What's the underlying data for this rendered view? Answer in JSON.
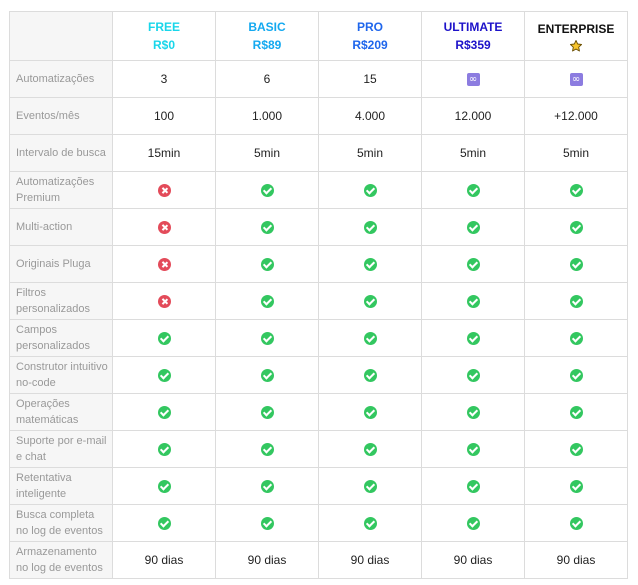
{
  "colors": {
    "free": "#18d6ea",
    "basic": "#14a9f0",
    "pro": "#1f66ec",
    "ultimate": "#1d12c9",
    "enterprise": "#111111"
  },
  "plans": [
    {
      "name": "FREE",
      "price": "R$0"
    },
    {
      "name": "BASIC",
      "price": "R$89"
    },
    {
      "name": "PRO",
      "price": "R$209"
    },
    {
      "name": "ULTIMATE",
      "price": "R$359"
    },
    {
      "name": "ENTERPRISE",
      "icon": "star-icon"
    }
  ],
  "rows": [
    {
      "label": "Automatizações",
      "values": [
        {
          "text": "3"
        },
        {
          "text": "6"
        },
        {
          "text": "15"
        },
        {
          "icon": "infinity-icon"
        },
        {
          "icon": "infinity-icon"
        }
      ]
    },
    {
      "label": "Eventos/mês",
      "values": [
        {
          "text": "100"
        },
        {
          "text": "1.000"
        },
        {
          "text": "4.000"
        },
        {
          "text": "12.000"
        },
        {
          "text": "+12.000"
        }
      ]
    },
    {
      "label": "Intervalo de busca",
      "values": [
        {
          "text": "15min"
        },
        {
          "text": "5min"
        },
        {
          "text": "5min"
        },
        {
          "text": "5min"
        },
        {
          "text": "5min"
        }
      ]
    },
    {
      "label": "Automatizações Premium",
      "values": [
        {
          "icon": "cross-icon"
        },
        {
          "icon": "check-icon"
        },
        {
          "icon": "check-icon"
        },
        {
          "icon": "check-icon"
        },
        {
          "icon": "check-icon"
        }
      ]
    },
    {
      "label": "Multi-action",
      "values": [
        {
          "icon": "cross-icon"
        },
        {
          "icon": "check-icon"
        },
        {
          "icon": "check-icon"
        },
        {
          "icon": "check-icon"
        },
        {
          "icon": "check-icon"
        }
      ]
    },
    {
      "label": "Originais Pluga",
      "values": [
        {
          "icon": "cross-icon"
        },
        {
          "icon": "check-icon"
        },
        {
          "icon": "check-icon"
        },
        {
          "icon": "check-icon"
        },
        {
          "icon": "check-icon"
        }
      ]
    },
    {
      "label": "Filtros personalizados",
      "values": [
        {
          "icon": "cross-icon"
        },
        {
          "icon": "check-icon"
        },
        {
          "icon": "check-icon"
        },
        {
          "icon": "check-icon"
        },
        {
          "icon": "check-icon"
        }
      ]
    },
    {
      "label": "Campos personalizados",
      "values": [
        {
          "icon": "check-icon"
        },
        {
          "icon": "check-icon"
        },
        {
          "icon": "check-icon"
        },
        {
          "icon": "check-icon"
        },
        {
          "icon": "check-icon"
        }
      ]
    },
    {
      "label": "Construtor intuitivo no-code",
      "values": [
        {
          "icon": "check-icon"
        },
        {
          "icon": "check-icon"
        },
        {
          "icon": "check-icon"
        },
        {
          "icon": "check-icon"
        },
        {
          "icon": "check-icon"
        }
      ]
    },
    {
      "label": "Operações matemáticas",
      "values": [
        {
          "icon": "check-icon"
        },
        {
          "icon": "check-icon"
        },
        {
          "icon": "check-icon"
        },
        {
          "icon": "check-icon"
        },
        {
          "icon": "check-icon"
        }
      ]
    },
    {
      "label": "Suporte por e-mail e chat",
      "values": [
        {
          "icon": "check-icon"
        },
        {
          "icon": "check-icon"
        },
        {
          "icon": "check-icon"
        },
        {
          "icon": "check-icon"
        },
        {
          "icon": "check-icon"
        }
      ]
    },
    {
      "label": "Retentativa inteligente",
      "values": [
        {
          "icon": "check-icon"
        },
        {
          "icon": "check-icon"
        },
        {
          "icon": "check-icon"
        },
        {
          "icon": "check-icon"
        },
        {
          "icon": "check-icon"
        }
      ]
    },
    {
      "label": "Busca completa no log de eventos",
      "values": [
        {
          "icon": "check-icon"
        },
        {
          "icon": "check-icon"
        },
        {
          "icon": "check-icon"
        },
        {
          "icon": "check-icon"
        },
        {
          "icon": "check-icon"
        }
      ]
    },
    {
      "label": "Armazenamento no log de eventos",
      "values": [
        {
          "text": "90 dias"
        },
        {
          "text": "90 dias"
        },
        {
          "text": "90 dias"
        },
        {
          "text": "90 dias"
        },
        {
          "text": "90 dias"
        }
      ]
    }
  ]
}
